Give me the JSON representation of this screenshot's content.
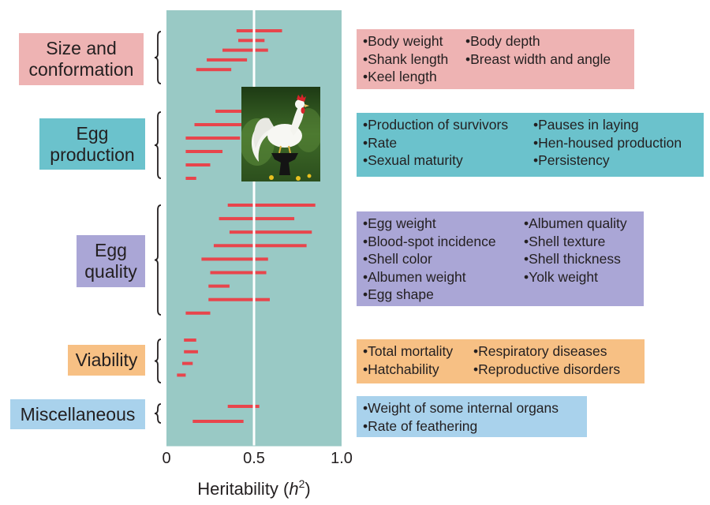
{
  "chart_data": {
    "type": "range-bar",
    "xlabel_prefix": "Heritability (",
    "xlabel_var": "h",
    "xlabel_sup": "2",
    "xlabel_suffix": ")",
    "xlim": [
      0,
      1.0
    ],
    "xticks": [
      "0",
      "0.5",
      "1.0"
    ],
    "reference_line": 0.5,
    "colors": {
      "panel": "#99c9c5",
      "bar": "#e8454c",
      "reference": "#ffffff",
      "size": "#eeb3b3",
      "production": "#6bc2cc",
      "quality": "#aaa6d6",
      "viability": "#f7c084",
      "misc": "#a9d2ec"
    },
    "groups": [
      {
        "name": "Size and\nconformation",
        "color_key": "size",
        "traits_col1": [
          "•Body weight",
          "•Shank length",
          "•Keel length"
        ],
        "traits_col2": [
          "•Body depth",
          "•Breast width and angle"
        ],
        "ranges": [
          [
            0.4,
            0.66
          ],
          [
            0.41,
            0.56
          ],
          [
            0.32,
            0.58
          ],
          [
            0.23,
            0.46
          ],
          [
            0.17,
            0.37
          ]
        ]
      },
      {
        "name": "Egg\nproduction",
        "color_key": "production",
        "traits_col1": [
          "•Production of survivors",
          "•Rate",
          "•Sexual maturity"
        ],
        "traits_col2": [
          "•Pauses in laying",
          "•Hen-housed production",
          "•Persistency"
        ],
        "ranges": [
          [
            0.28,
            0.45
          ],
          [
            0.16,
            0.44
          ],
          [
            0.11,
            0.42
          ],
          [
            0.11,
            0.32
          ],
          [
            0.11,
            0.25
          ],
          [
            0.11,
            0.17
          ]
        ]
      },
      {
        "name": "Egg\nquality",
        "color_key": "quality",
        "traits_col1": [
          "•Egg weight",
          "•Blood-spot incidence",
          "•Shell color",
          "•Albumen weight",
          "•Egg shape"
        ],
        "traits_col2": [
          "•Albumen quality",
          "•Shell texture",
          "•Shell thickness",
          "•Yolk weight"
        ],
        "ranges": [
          [
            0.35,
            0.85
          ],
          [
            0.3,
            0.73
          ],
          [
            0.36,
            0.83
          ],
          [
            0.27,
            0.8
          ],
          [
            0.2,
            0.58
          ],
          [
            0.25,
            0.57
          ],
          [
            0.24,
            0.36
          ],
          [
            0.24,
            0.59
          ],
          [
            0.11,
            0.25
          ]
        ]
      },
      {
        "name": "Viability",
        "color_key": "viability",
        "traits_col1": [
          "•Total mortality",
          "•Hatchability"
        ],
        "traits_col2": [
          "•Respiratory diseases",
          "•Reproductive disorders"
        ],
        "ranges": [
          [
            0.1,
            0.17
          ],
          [
            0.1,
            0.18
          ],
          [
            0.09,
            0.15
          ],
          [
            0.06,
            0.11
          ]
        ]
      },
      {
        "name": "Miscellaneous",
        "color_key": "misc",
        "traits_col1": [
          "•Weight of some internal organs",
          "•Rate of feathering"
        ],
        "traits_col2": [],
        "ranges": [
          [
            0.35,
            0.53
          ],
          [
            0.15,
            0.44
          ]
        ]
      }
    ]
  },
  "photo": {
    "icon": "rooster-icon"
  }
}
